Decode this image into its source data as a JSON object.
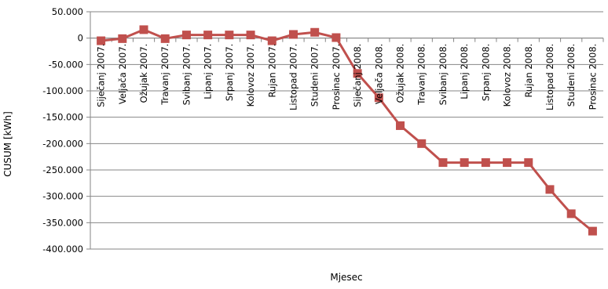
{
  "chart_data": {
    "type": "line",
    "title": "",
    "xlabel": "Mjesec",
    "ylabel": "CUSUM [kWh]",
    "ylim": [
      -400000,
      50000
    ],
    "yticks": [
      50000,
      0,
      -50000,
      -100000,
      -150000,
      -200000,
      -250000,
      -300000,
      -350000,
      -400000
    ],
    "ytick_labels": [
      "50.000",
      "0",
      "-50.000",
      "-100.000",
      "-150.000",
      "-200.000",
      "-250.000",
      "-300.000",
      "-350.000",
      "-400.000"
    ],
    "grid": true,
    "legend": "none",
    "categories": [
      "Siječanj 2007.",
      "Veljača 2007.",
      "Ožujak 2007.",
      "Travanj 2007.",
      "Svibanj 2007.",
      "Lipanj 2007.",
      "Srpanj 2007.",
      "Kolovoz 2007.",
      "Rujan 2007.",
      "Listopad 2007.",
      "Studeni 2007.",
      "Prosinac 2007.",
      "Siječanj 2008.",
      "Veljača 2008.",
      "Ožujak 2008.",
      "Travanj 2008.",
      "Svibanj 2008.",
      "Lipanj 2008.",
      "Srpanj 2008.",
      "Kolovoz 2008.",
      "Rujan 2008.",
      "Listopad 2008.",
      "Studeni 2008.",
      "Prosinac 2008."
    ],
    "series": [
      {
        "color": "#c0504d",
        "marker": "square",
        "values": [
          -5000,
          -1000,
          16000,
          -1000,
          6000,
          6000,
          6000,
          6000,
          -5000,
          7000,
          11000,
          1000,
          -67000,
          -113000,
          -166000,
          -200000,
          -236000,
          -236000,
          -236000,
          -236000,
          -236000,
          -287000,
          -333000,
          -366000
        ]
      }
    ]
  }
}
